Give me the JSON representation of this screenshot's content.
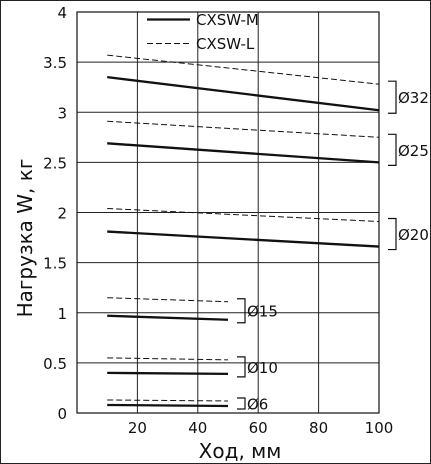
{
  "chart_data": {
    "type": "line",
    "xlabel": "Ход, мм",
    "ylabel": "Нагрузка W, кг",
    "xlim": [
      0,
      100
    ],
    "ylim": [
      0,
      4
    ],
    "xticks": [
      20,
      40,
      60,
      80,
      100
    ],
    "yticks": [
      0,
      0.5,
      1,
      1.5,
      2,
      2.5,
      3,
      3.5,
      4
    ],
    "ytick_labels": [
      "0",
      "0.5",
      "1",
      "1.5",
      "2",
      "2.5",
      "3",
      "3.5",
      "4"
    ],
    "xtick_labels": [
      "20",
      "40",
      "60",
      "80",
      "100"
    ],
    "grid": true,
    "legend_position": "top-center",
    "legend": [
      {
        "label": "CXSW-M",
        "style": "solid"
      },
      {
        "label": "CXSW-L",
        "style": "dashed"
      }
    ],
    "series": [
      {
        "group": "Ø32",
        "style": "solid",
        "x": [
          10,
          100
        ],
        "y": [
          3.35,
          3.02
        ]
      },
      {
        "group": "Ø32",
        "style": "dashed",
        "x": [
          10,
          100
        ],
        "y": [
          3.57,
          3.28
        ]
      },
      {
        "group": "Ø25",
        "style": "solid",
        "x": [
          10,
          100
        ],
        "y": [
          2.69,
          2.5
        ]
      },
      {
        "group": "Ø25",
        "style": "dashed",
        "x": [
          10,
          100
        ],
        "y": [
          2.91,
          2.75
        ]
      },
      {
        "group": "Ø20",
        "style": "solid",
        "x": [
          10,
          100
        ],
        "y": [
          1.81,
          1.66
        ]
      },
      {
        "group": "Ø20",
        "style": "dashed",
        "x": [
          10,
          100
        ],
        "y": [
          2.04,
          1.91
        ]
      },
      {
        "group": "Ø15",
        "style": "solid",
        "x": [
          10,
          50
        ],
        "y": [
          0.97,
          0.93
        ]
      },
      {
        "group": "Ø15",
        "style": "dashed",
        "x": [
          10,
          50
        ],
        "y": [
          1.15,
          1.11
        ]
      },
      {
        "group": "Ø10",
        "style": "solid",
        "x": [
          10,
          50
        ],
        "y": [
          0.4,
          0.39
        ]
      },
      {
        "group": "Ø10",
        "style": "dashed",
        "x": [
          10,
          50
        ],
        "y": [
          0.55,
          0.53
        ]
      },
      {
        "group": "Ø6",
        "style": "solid",
        "x": [
          10,
          50
        ],
        "y": [
          0.08,
          0.07
        ]
      },
      {
        "group": "Ø6",
        "style": "dashed",
        "x": [
          10,
          50
        ],
        "y": [
          0.13,
          0.12
        ]
      }
    ],
    "annotations": [
      {
        "label": "Ø32",
        "x": 100,
        "y_range": [
          3.02,
          3.28
        ]
      },
      {
        "label": "Ø25",
        "x": 100,
        "y_range": [
          2.5,
          2.75
        ]
      },
      {
        "label": "Ø20",
        "x": 100,
        "y_range": [
          1.66,
          1.91
        ]
      },
      {
        "label": "Ø15",
        "x": 50,
        "y_range": [
          0.93,
          1.11
        ]
      },
      {
        "label": "Ø10",
        "x": 50,
        "y_range": [
          0.39,
          0.53
        ]
      },
      {
        "label": "Ø6",
        "x": 50,
        "y_range": [
          0.07,
          0.12
        ]
      }
    ]
  }
}
